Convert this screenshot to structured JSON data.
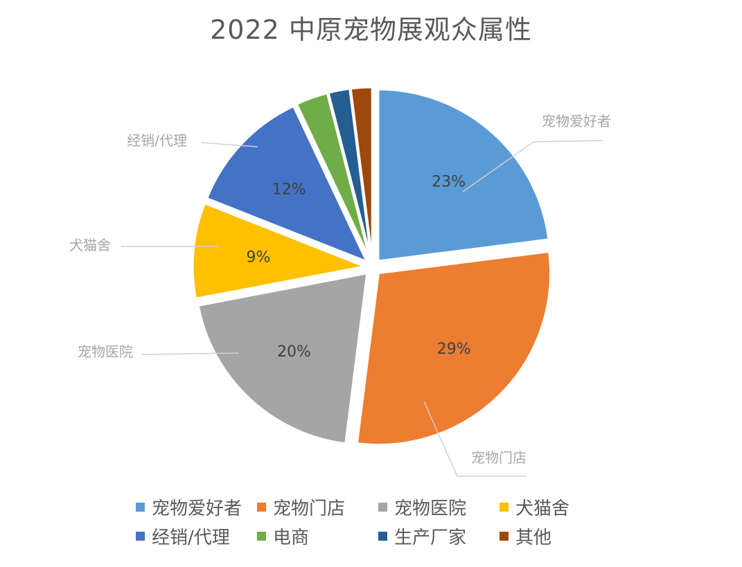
{
  "chart_data": {
    "type": "pie",
    "title": "2022 中原宠物展观众属性",
    "categories": [
      "宠物爱好者",
      "宠物门店",
      "宠物医院",
      "犬猫舍",
      "经销/代理",
      "电商",
      "生产厂家",
      "其他"
    ],
    "values": [
      23,
      29,
      20,
      9,
      12,
      3,
      2,
      2
    ],
    "data_labels": [
      "23%",
      "29%",
      "20%",
      "9%",
      "12%",
      "",
      "",
      ""
    ],
    "colors": [
      "#5B9BD5",
      "#ED7D31",
      "#A5A5A5",
      "#FFC000",
      "#4472C4",
      "#70AD47",
      "#255E91",
      "#9E480E"
    ],
    "exploded": true,
    "legend_position": "bottom",
    "callout_labels": [
      "宠物爱好者",
      "宠物门店",
      "宠物医院",
      "犬猫舍",
      "经销/代理"
    ]
  }
}
